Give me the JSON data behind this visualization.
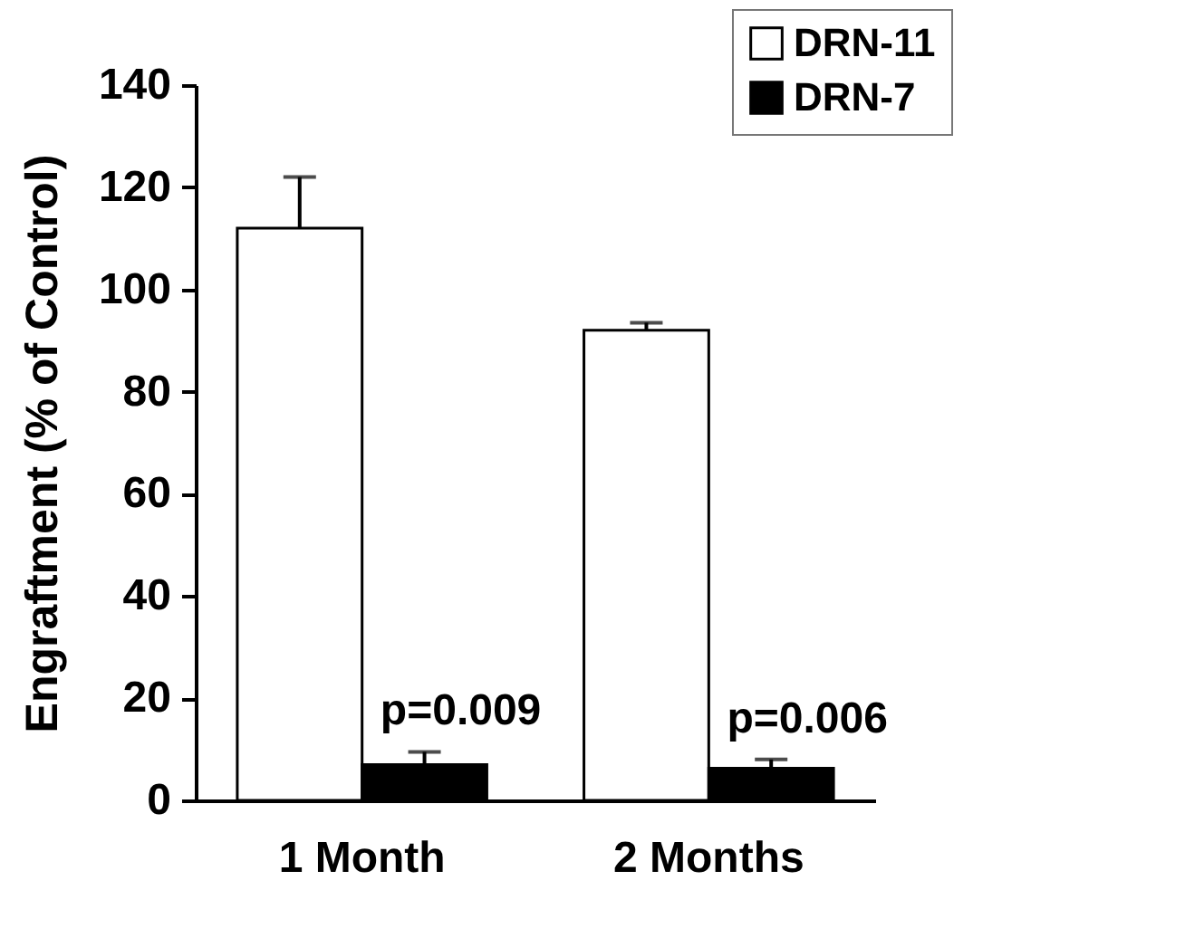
{
  "chart_data": {
    "type": "bar",
    "ylabel": "Engraftment (% of Control)",
    "categories": [
      "1 Month",
      "2 Months"
    ],
    "series": [
      {
        "name": "DRN-11",
        "color": "#ffffff",
        "values": [
          112,
          92
        ],
        "errors": [
          [
            112,
            122
          ],
          [
            92,
            93.5
          ]
        ]
      },
      {
        "name": "DRN-7",
        "color": "#000000",
        "values": [
          7,
          6.3
        ],
        "errors": [
          [
            7,
            9.5
          ],
          [
            6.3,
            8
          ]
        ]
      }
    ],
    "ylim": [
      0,
      140
    ],
    "yticks": [
      0,
      20,
      40,
      60,
      80,
      100,
      120,
      140
    ],
    "grid": false,
    "legend": "top right",
    "annotations": [
      {
        "text": "p=0.009",
        "x": "1 Month",
        "y": 9.5
      },
      {
        "text": "p=0.006",
        "x": "2 Months",
        "y": 8
      }
    ]
  }
}
